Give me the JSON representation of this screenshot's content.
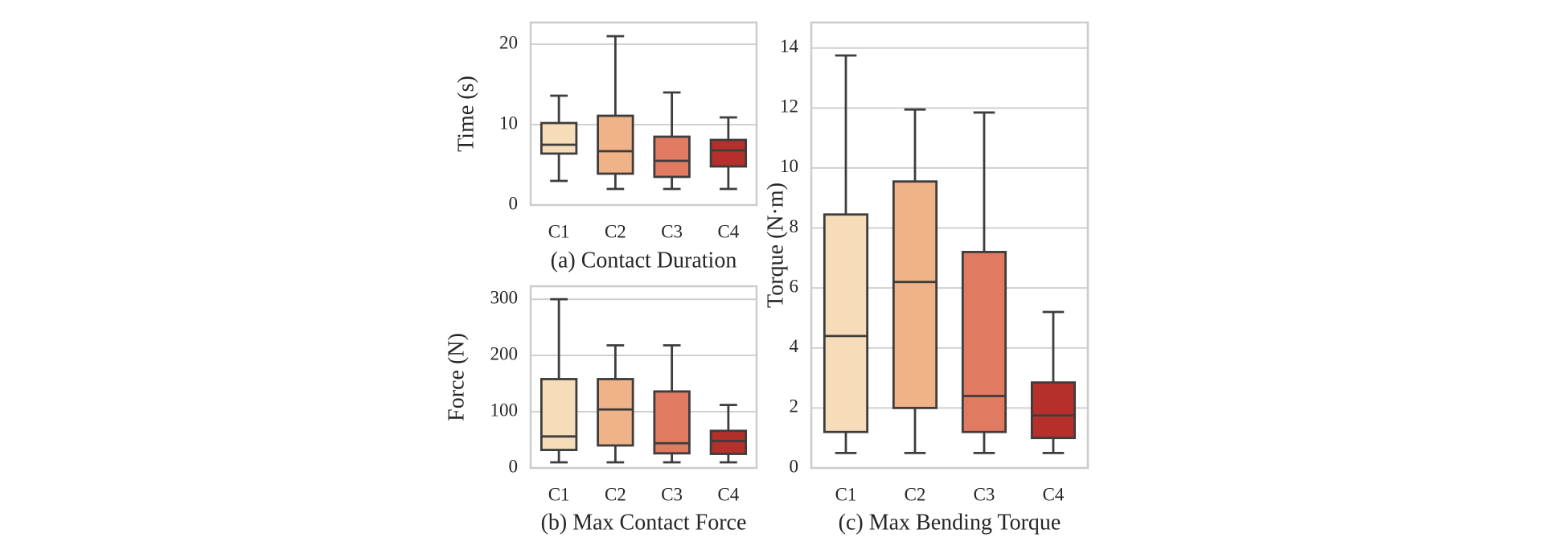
{
  "chart_data": [
    {
      "type": "box",
      "title": "(a) Contact Duration",
      "y_label": "Time (s)",
      "categories": [
        "C1",
        "C2",
        "C3",
        "C4"
      ],
      "colors": [
        "#f6dcb8",
        "#efb387",
        "#e07a61",
        "#b5302b"
      ],
      "boxes": [
        {
          "min": 3,
          "q1": 6.4,
          "median": 7.5,
          "q3": 10.2,
          "max": 13.6
        },
        {
          "min": 2,
          "q1": 3.9,
          "median": 6.7,
          "q3": 11.1,
          "max": 21
        },
        {
          "min": 2,
          "q1": 3.5,
          "median": 5.5,
          "q3": 8.5,
          "max": 14
        },
        {
          "min": 2,
          "q1": 4.8,
          "median": 6.8,
          "q3": 8.1,
          "max": 10.9
        }
      ],
      "ylim": [
        0,
        22.7
      ],
      "yticks": [
        0,
        10,
        20
      ],
      "grid": true
    },
    {
      "type": "box",
      "title": "(b) Max Contact Force",
      "y_label": "Force (N)",
      "categories": [
        "C1",
        "C2",
        "C3",
        "C4"
      ],
      "colors": [
        "#f6dcb8",
        "#efb387",
        "#e07a61",
        "#b5302b"
      ],
      "boxes": [
        {
          "min": 10,
          "q1": 32,
          "median": 56,
          "q3": 158,
          "max": 300
        },
        {
          "min": 10,
          "q1": 40,
          "median": 104,
          "q3": 158,
          "max": 218
        },
        {
          "min": 10,
          "q1": 26,
          "median": 44,
          "q3": 136,
          "max": 218
        },
        {
          "min": 10,
          "q1": 25,
          "median": 48,
          "q3": 66,
          "max": 112
        }
      ],
      "ylim": [
        0,
        323
      ],
      "yticks": [
        0,
        100,
        200,
        300
      ],
      "grid": true
    },
    {
      "type": "box",
      "title": "(c) Max Bending Torque",
      "y_label": "Torque (N·m)",
      "categories": [
        "C1",
        "C2",
        "C3",
        "C4"
      ],
      "colors": [
        "#f6dcb8",
        "#efb387",
        "#e07a61",
        "#b5302b"
      ],
      "boxes": [
        {
          "min": 0.5,
          "q1": 1.2,
          "median": 4.4,
          "q3": 8.45,
          "max": 13.75
        },
        {
          "min": 0.5,
          "q1": 2.0,
          "median": 6.2,
          "q3": 9.55,
          "max": 11.95
        },
        {
          "min": 0.5,
          "q1": 1.2,
          "median": 2.4,
          "q3": 7.2,
          "max": 11.85
        },
        {
          "min": 0.5,
          "q1": 1.0,
          "median": 1.75,
          "q3": 2.85,
          "max": 5.2
        }
      ],
      "ylim": [
        0,
        14.85
      ],
      "yticks": [
        0,
        2,
        4,
        6,
        8,
        10,
        12,
        14
      ],
      "grid": true
    }
  ]
}
